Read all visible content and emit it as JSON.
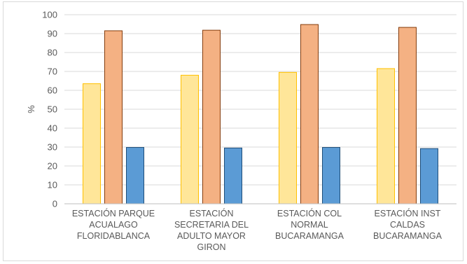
{
  "chart_data": {
    "type": "bar",
    "title": "",
    "xlabel": "",
    "ylabel": "%",
    "ylim": [
      0,
      100
    ],
    "yticks": [
      0,
      10,
      20,
      30,
      40,
      50,
      60,
      70,
      80,
      90,
      100
    ],
    "grid": true,
    "legend": "none",
    "categories": [
      [
        "ESTACIÓN PARQUE",
        "ACUALAGO",
        "FLORIDABLANCA"
      ],
      [
        "ESTACIÓN",
        "SECRETARIA DEL",
        "ADULTO MAYOR",
        "GIRON"
      ],
      [
        "ESTACIÓN COL",
        "NORMAL",
        "BUCARAMANGA"
      ],
      [
        "ESTACIÓN INST",
        "CALDAS",
        "BUCARAMANGA"
      ]
    ],
    "series": [
      {
        "values": [
          63.5,
          68.0,
          69.5,
          71.5
        ],
        "fill": "#FFE699",
        "stroke": "#FFC000"
      },
      {
        "values": [
          91.5,
          91.8,
          94.8,
          93.3
        ],
        "fill": "#F4B183",
        "stroke": "#843C0C"
      },
      {
        "values": [
          29.8,
          29.5,
          29.8,
          29.2
        ],
        "fill": "#5B9BD5",
        "stroke": "#1F4E79"
      }
    ]
  }
}
